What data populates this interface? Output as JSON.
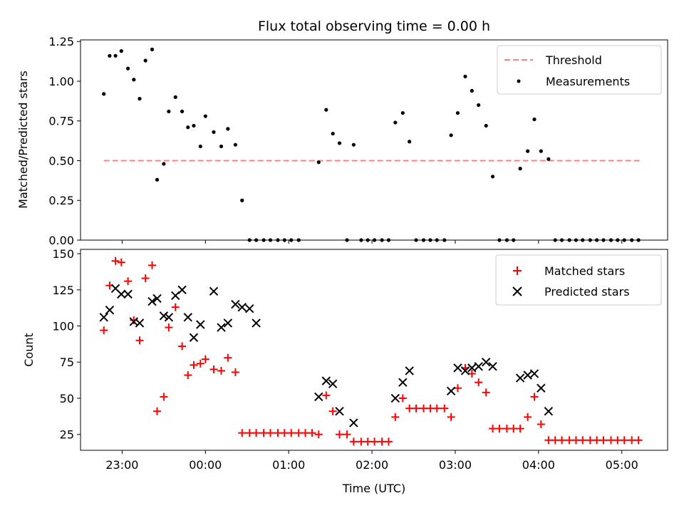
{
  "title": "Flux total observing time = 0.00 h",
  "chart_data": [
    {
      "type": "scatter",
      "ylabel": "Matched/Predicted stars",
      "xlim": [
        -1.5,
        5.55
      ],
      "ylim": [
        0,
        1.26
      ],
      "yticks": [
        0,
        0.25,
        0.5,
        0.75,
        1.0,
        1.25
      ],
      "ytick_labels": [
        "0.00",
        "0.25",
        "0.50",
        "0.75",
        "1.00",
        "1.25"
      ],
      "legend_position": "upper right",
      "threshold": {
        "name": "Threshold",
        "value": 0.5,
        "x_range": [
          -1.22,
          5.22
        ],
        "color": "#ff7f7f"
      },
      "series": [
        {
          "name": "Measurements",
          "color": "#000000",
          "marker": "dot",
          "x": [
            -1.22,
            -1.15,
            -1.08,
            -1.01,
            -0.93,
            -0.86,
            -0.79,
            -0.72,
            -0.64,
            -0.58,
            -0.5,
            -0.44,
            -0.36,
            -0.28,
            -0.21,
            -0.14,
            -0.06,
            0.0,
            0.1,
            0.19,
            0.27,
            0.36,
            0.44,
            0.53,
            0.61,
            0.7,
            0.78,
            0.87,
            0.95,
            1.03,
            1.12,
            1.36,
            1.45,
            1.53,
            1.61,
            1.7,
            1.78,
            1.87,
            1.95,
            2.03,
            2.12,
            2.2,
            2.28,
            2.37,
            2.45,
            2.53,
            2.62,
            2.7,
            2.78,
            2.87,
            2.95,
            3.03,
            3.12,
            3.2,
            3.28,
            3.37,
            3.45,
            3.53,
            3.62,
            3.7,
            3.78,
            3.87,
            3.95,
            4.03,
            4.12,
            4.2,
            4.28,
            4.37,
            4.45,
            4.53,
            4.62,
            4.7,
            4.78,
            4.87,
            4.95,
            5.03,
            5.12,
            5.2
          ],
          "y": [
            0.92,
            1.16,
            1.16,
            1.19,
            1.08,
            1.01,
            0.89,
            1.13,
            1.2,
            0.38,
            0.48,
            0.81,
            0.9,
            0.81,
            0.71,
            0.72,
            0.59,
            0.78,
            0.68,
            0.59,
            0.7,
            0.6,
            0.25,
            0.0,
            0.0,
            0.0,
            0.0,
            0.0,
            0.0,
            0.0,
            0.0,
            0.49,
            0.82,
            0.67,
            0.61,
            0.0,
            0.6,
            0.0,
            0.0,
            0.0,
            0.0,
            0.0,
            0.74,
            0.8,
            0.62,
            0.0,
            0.0,
            0.0,
            0.0,
            0.0,
            0.66,
            0.8,
            1.03,
            0.94,
            0.85,
            0.72,
            0.4,
            0.0,
            0.0,
            0.0,
            0.45,
            0.56,
            0.76,
            0.56,
            0.51,
            0.0,
            0.0,
            0.0,
            0.0,
            0.0,
            0.0,
            0.0,
            0.0,
            0.0,
            0.0,
            0.0,
            0.0,
            0.0
          ]
        }
      ]
    },
    {
      "type": "scatter",
      "xlabel": "Time (UTC)",
      "ylabel": "Count",
      "xlim": [
        -1.5,
        5.55
      ],
      "ylim": [
        14,
        153
      ],
      "yticks": [
        25,
        50,
        75,
        100,
        125,
        150
      ],
      "ytick_labels": [
        "25",
        "50",
        "75",
        "100",
        "125",
        "150"
      ],
      "xticks": [
        -1,
        0,
        1,
        2,
        3,
        4,
        5
      ],
      "xtick_labels": [
        "23:00",
        "00:00",
        "01:00",
        "02:00",
        "03:00",
        "04:00",
        "05:00"
      ],
      "legend_position": "upper right",
      "series": [
        {
          "name": "Matched stars",
          "color": "#ff0000",
          "marker": "plus",
          "x": [
            -1.22,
            -1.15,
            -1.08,
            -1.01,
            -0.93,
            -0.86,
            -0.79,
            -0.72,
            -0.64,
            -0.58,
            -0.5,
            -0.44,
            -0.36,
            -0.28,
            -0.21,
            -0.14,
            -0.06,
            0.0,
            0.1,
            0.19,
            0.27,
            0.36,
            0.44,
            0.53,
            0.61,
            0.7,
            0.78,
            0.87,
            0.95,
            1.03,
            1.12,
            1.2,
            1.28,
            1.36,
            1.45,
            1.53,
            1.61,
            1.7,
            1.78,
            1.87,
            1.95,
            2.03,
            2.12,
            2.2,
            2.28,
            2.37,
            2.45,
            2.53,
            2.62,
            2.7,
            2.78,
            2.87,
            2.95,
            3.03,
            3.12,
            3.2,
            3.28,
            3.37,
            3.45,
            3.53,
            3.62,
            3.7,
            3.78,
            3.87,
            3.95,
            4.03,
            4.12,
            4.2,
            4.28,
            4.37,
            4.45,
            4.53,
            4.62,
            4.7,
            4.78,
            4.87,
            4.95,
            5.03,
            5.12,
            5.2
          ],
          "y": [
            97,
            128,
            145,
            144,
            131,
            104,
            90,
            133,
            142,
            41,
            51,
            99,
            113,
            86,
            66,
            73,
            74,
            77,
            70,
            69,
            78,
            68,
            26,
            26,
            26,
            26,
            26,
            26,
            26,
            26,
            26,
            26,
            26,
            25,
            52,
            41,
            25,
            25,
            20,
            20,
            20,
            20,
            20,
            20,
            37,
            50,
            43,
            43,
            43,
            43,
            43,
            43,
            37,
            57,
            71,
            67,
            61,
            54,
            29,
            29,
            29,
            29,
            29,
            37,
            51,
            32,
            21,
            21,
            21,
            21,
            21,
            21,
            21,
            21,
            21,
            21,
            21,
            21,
            21,
            21
          ]
        },
        {
          "name": "Predicted stars",
          "color": "#000000",
          "marker": "x",
          "x": [
            -1.22,
            -1.15,
            -1.08,
            -1.01,
            -0.93,
            -0.86,
            -0.79,
            -0.64,
            -0.58,
            -0.5,
            -0.44,
            -0.36,
            -0.28,
            -0.21,
            -0.14,
            -0.06,
            0.1,
            0.19,
            0.27,
            0.36,
            0.44,
            0.53,
            0.61,
            1.36,
            1.45,
            1.53,
            1.61,
            1.78,
            2.28,
            2.37,
            2.45,
            2.95,
            3.03,
            3.12,
            3.2,
            3.28,
            3.37,
            3.45,
            3.78,
            3.87,
            3.95,
            4.03,
            4.12
          ],
          "y": [
            106,
            111,
            126,
            122,
            122,
            103,
            102,
            117,
            119,
            107,
            106,
            121,
            125,
            106,
            92,
            101,
            124,
            99,
            102,
            115,
            113,
            112,
            102,
            51,
            62,
            60,
            41,
            33,
            50,
            61,
            69,
            55,
            71,
            69,
            71,
            72,
            75,
            72,
            64,
            66,
            67,
            57,
            41
          ]
        }
      ]
    }
  ]
}
